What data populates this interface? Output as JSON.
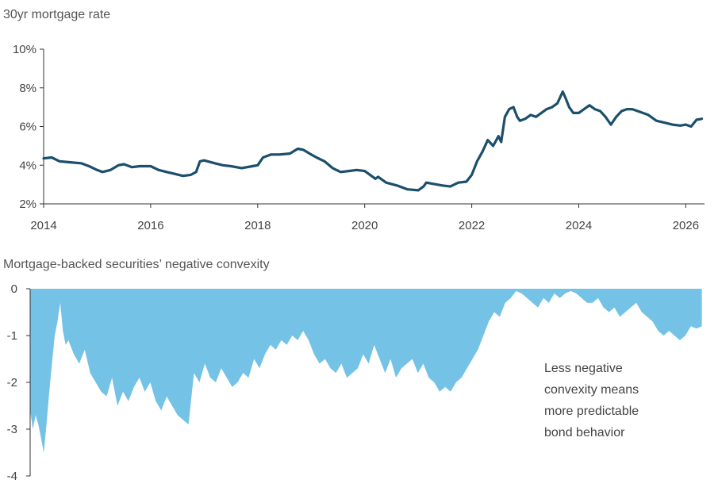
{
  "chart_data": [
    {
      "type": "line",
      "title": "30yr mortgage rate",
      "xlim": [
        2014,
        2026.35
      ],
      "ylim": [
        2,
        10
      ],
      "x_ticks": [
        2014,
        2016,
        2018,
        2020,
        2022,
        2024,
        2026
      ],
      "x_tick_labels": [
        "2014",
        "2016",
        "2018",
        "2020",
        "2022",
        "2024",
        "2026"
      ],
      "y_ticks": [
        2,
        4,
        6,
        8,
        10
      ],
      "y_tick_labels": [
        "2%",
        "4%",
        "6%",
        "8%",
        "10%"
      ],
      "grid": false,
      "color": "#1b4f6b",
      "series": [
        {
          "x": [
            2014.0,
            2014.15,
            2014.3,
            2014.5,
            2014.7,
            2014.85,
            2015.0,
            2015.1,
            2015.25,
            2015.4,
            2015.5,
            2015.65,
            2015.8,
            2016.0,
            2016.15,
            2016.3,
            2016.45,
            2016.6,
            2016.75,
            2016.85,
            2016.92,
            2017.0,
            2017.2,
            2017.35,
            2017.5,
            2017.7,
            2017.9,
            2018.0,
            2018.1,
            2018.25,
            2018.4,
            2018.6,
            2018.75,
            2018.85,
            2019.0,
            2019.1,
            2019.25,
            2019.4,
            2019.55,
            2019.7,
            2019.85,
            2020.0,
            2020.1,
            2020.2,
            2020.25,
            2020.4,
            2020.6,
            2020.8,
            2021.0,
            2021.1,
            2021.15,
            2021.25,
            2021.45,
            2021.6,
            2021.75,
            2021.9,
            2022.0,
            2022.1,
            2022.2,
            2022.3,
            2022.4,
            2022.5,
            2022.55,
            2022.62,
            2022.7,
            2022.78,
            2022.85,
            2022.9,
            2023.0,
            2023.1,
            2023.2,
            2023.3,
            2023.4,
            2023.5,
            2023.6,
            2023.7,
            2023.75,
            2023.82,
            2023.9,
            2024.0,
            2024.1,
            2024.2,
            2024.3,
            2024.4,
            2024.5,
            2024.6,
            2024.7,
            2024.8,
            2024.9,
            2025.0,
            2025.1,
            2025.2,
            2025.3,
            2025.45,
            2025.6,
            2025.75,
            2025.9,
            2026.0,
            2026.1,
            2026.2,
            2026.3
          ],
          "y": [
            4.35,
            4.4,
            4.2,
            4.15,
            4.1,
            3.95,
            3.75,
            3.65,
            3.75,
            4.0,
            4.05,
            3.9,
            3.95,
            3.95,
            3.75,
            3.65,
            3.55,
            3.45,
            3.5,
            3.65,
            4.2,
            4.25,
            4.1,
            4.0,
            3.95,
            3.85,
            3.95,
            4.0,
            4.4,
            4.55,
            4.55,
            4.6,
            4.85,
            4.8,
            4.55,
            4.4,
            4.2,
            3.85,
            3.65,
            3.7,
            3.75,
            3.7,
            3.5,
            3.3,
            3.4,
            3.1,
            2.95,
            2.75,
            2.7,
            2.9,
            3.1,
            3.05,
            2.95,
            2.9,
            3.1,
            3.15,
            3.5,
            4.2,
            4.7,
            5.3,
            5.0,
            5.5,
            5.2,
            6.5,
            6.9,
            7.0,
            6.5,
            6.3,
            6.4,
            6.6,
            6.5,
            6.7,
            6.9,
            7.0,
            7.2,
            7.8,
            7.5,
            7.0,
            6.7,
            6.7,
            6.9,
            7.1,
            6.9,
            6.8,
            6.5,
            6.1,
            6.5,
            6.8,
            6.9,
            6.9,
            6.8,
            6.7,
            6.6,
            6.3,
            6.2,
            6.1,
            6.05,
            6.1,
            6.0,
            6.35,
            6.4
          ]
        }
      ]
    },
    {
      "type": "area",
      "title": "Mortgage-backed securities’ negative convexity",
      "xlim": [
        2014,
        2026.35
      ],
      "ylim": [
        -4,
        0
      ],
      "y_ticks": [
        0,
        -1,
        -2,
        -3,
        -4
      ],
      "y_tick_labels": [
        "0",
        "-1",
        "-2",
        "-3",
        "-4"
      ],
      "grid": false,
      "color": "#74c2e6",
      "annotation": [
        "Less negative",
        "convexity means",
        "more predictable",
        "bond behavior"
      ],
      "series": [
        {
          "x": [
            2014.0,
            2014.05,
            2014.1,
            2014.15,
            2014.2,
            2014.25,
            2014.3,
            2014.35,
            2014.4,
            2014.45,
            2014.5,
            2014.55,
            2014.6,
            2014.65,
            2014.7,
            2014.8,
            2014.9,
            2015.0,
            2015.1,
            2015.2,
            2015.3,
            2015.4,
            2015.5,
            2015.6,
            2015.7,
            2015.8,
            2015.9,
            2016.0,
            2016.1,
            2016.2,
            2016.3,
            2016.4,
            2016.5,
            2016.6,
            2016.7,
            2016.8,
            2016.9,
            2017.0,
            2017.1,
            2017.2,
            2017.3,
            2017.4,
            2017.5,
            2017.6,
            2017.7,
            2017.8,
            2017.9,
            2018.0,
            2018.1,
            2018.2,
            2018.3,
            2018.4,
            2018.5,
            2018.6,
            2018.7,
            2018.8,
            2018.9,
            2019.0,
            2019.1,
            2019.2,
            2019.3,
            2019.4,
            2019.5,
            2019.6,
            2019.7,
            2019.8,
            2019.9,
            2020.0,
            2020.1,
            2020.2,
            2020.3,
            2020.4,
            2020.5,
            2020.6,
            2020.7,
            2020.8,
            2020.9,
            2021.0,
            2021.1,
            2021.2,
            2021.3,
            2021.4,
            2021.5,
            2021.6,
            2021.7,
            2021.8,
            2021.9,
            2022.0,
            2022.1,
            2022.2,
            2022.3,
            2022.4,
            2022.5,
            2022.6,
            2022.7,
            2022.8,
            2022.9,
            2023.0,
            2023.1,
            2023.2,
            2023.3,
            2023.4,
            2023.5,
            2023.6,
            2023.7,
            2023.8,
            2023.9,
            2024.0,
            2024.1,
            2024.2,
            2024.3,
            2024.4,
            2024.5,
            2024.6,
            2024.7,
            2024.8,
            2024.9,
            2025.0,
            2025.1,
            2025.2,
            2025.3,
            2025.4,
            2025.5,
            2025.6,
            2025.7,
            2025.8,
            2025.9,
            2026.0,
            2026.1,
            2026.2,
            2026.3
          ],
          "y": [
            -2.6,
            -3.0,
            -2.7,
            -2.9,
            -3.2,
            -3.5,
            -2.9,
            -2.2,
            -1.6,
            -1.0,
            -0.7,
            -0.3,
            -0.9,
            -1.2,
            -1.1,
            -1.4,
            -1.6,
            -1.3,
            -1.8,
            -2.0,
            -2.2,
            -2.3,
            -1.9,
            -2.5,
            -2.2,
            -2.4,
            -2.1,
            -1.9,
            -2.2,
            -2.0,
            -2.4,
            -2.6,
            -2.3,
            -2.5,
            -2.7,
            -2.8,
            -2.9,
            -1.8,
            -2.0,
            -1.6,
            -1.9,
            -2.0,
            -1.7,
            -1.9,
            -2.1,
            -2.0,
            -1.8,
            -1.9,
            -1.5,
            -1.7,
            -1.4,
            -1.2,
            -1.3,
            -1.1,
            -1.2,
            -1.0,
            -1.1,
            -0.9,
            -1.1,
            -1.4,
            -1.6,
            -1.5,
            -1.7,
            -1.8,
            -1.6,
            -1.9,
            -1.8,
            -1.7,
            -1.4,
            -1.6,
            -1.2,
            -1.5,
            -1.8,
            -1.5,
            -1.9,
            -1.7,
            -1.6,
            -1.5,
            -1.8,
            -1.6,
            -1.9,
            -2.0,
            -2.2,
            -2.1,
            -2.2,
            -2.0,
            -1.9,
            -1.7,
            -1.5,
            -1.3,
            -1.0,
            -0.7,
            -0.5,
            -0.6,
            -0.3,
            -0.2,
            -0.05,
            -0.1,
            -0.2,
            -0.3,
            -0.4,
            -0.2,
            -0.3,
            -0.1,
            -0.2,
            -0.1,
            -0.05,
            -0.1,
            -0.2,
            -0.3,
            -0.3,
            -0.2,
            -0.4,
            -0.5,
            -0.4,
            -0.6,
            -0.5,
            -0.4,
            -0.3,
            -0.5,
            -0.6,
            -0.7,
            -0.9,
            -1.0,
            -0.9,
            -1.0,
            -1.1,
            -1.0,
            -0.8,
            -0.85,
            -0.8
          ]
        }
      ]
    }
  ]
}
